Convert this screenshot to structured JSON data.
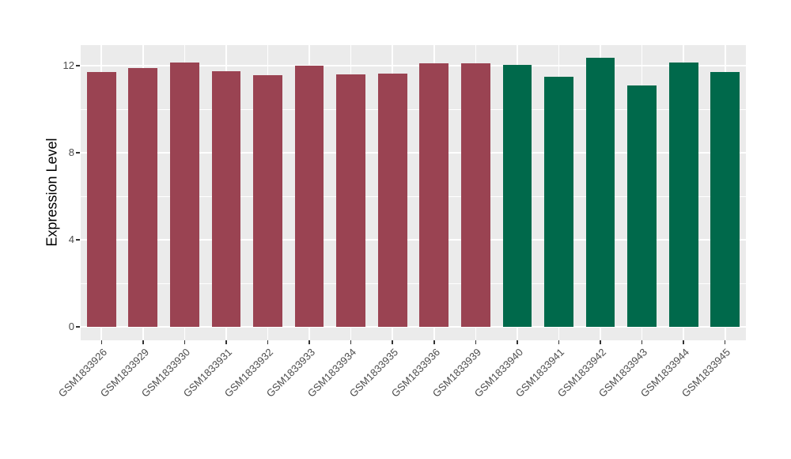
{
  "chart_data": {
    "type": "bar",
    "title": "",
    "ylabel": "Expression Level",
    "xlabel": "",
    "categories": [
      "GSM1833926",
      "GSM1833929",
      "GSM1833930",
      "GSM1833931",
      "GSM1833932",
      "GSM1833933",
      "GSM1833934",
      "GSM1833935",
      "GSM1833936",
      "GSM1833939",
      "GSM1833940",
      "GSM1833941",
      "GSM1833942",
      "GSM1833943",
      "GSM1833944",
      "GSM1833945"
    ],
    "values": [
      11.7,
      11.9,
      12.15,
      11.75,
      11.55,
      12.0,
      11.6,
      11.65,
      12.1,
      12.1,
      12.05,
      11.5,
      12.35,
      11.1,
      12.15,
      11.7
    ],
    "bar_colors": [
      "#9A4352",
      "#9A4352",
      "#9A4352",
      "#9A4352",
      "#9A4352",
      "#9A4352",
      "#9A4352",
      "#9A4352",
      "#9A4352",
      "#9A4352",
      "#00694B",
      "#00694B",
      "#00694B",
      "#00694B",
      "#00694B",
      "#00694B"
    ],
    "group_colors": {
      "maroon_group": "#9A4352",
      "green_group": "#00694B"
    },
    "yticks": [
      0,
      4,
      8,
      12
    ],
    "yticks_minor": [
      2,
      6,
      10
    ],
    "ylim": [
      -0.65,
      12.95
    ],
    "bar_width_ratio": 0.7,
    "grid": true,
    "legend": "none",
    "panel_background": "#EBEBEB",
    "grid_color": "#FFFFFF",
    "tick_label_color": "#4D4D4D"
  }
}
